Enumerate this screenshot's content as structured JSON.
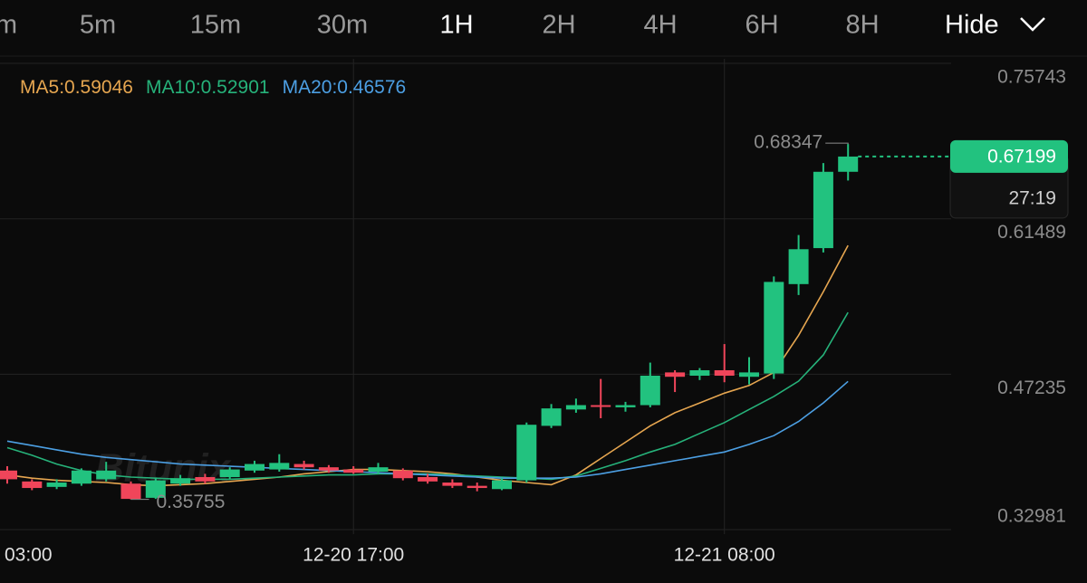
{
  "timeframes": [
    "m",
    "5m",
    "15m",
    "30m",
    "1H",
    "2H",
    "4H",
    "6H",
    "8H"
  ],
  "active_timeframe": "1H",
  "hide_button": "Hide",
  "watermark": "Bitunix",
  "countdown": "27:19",
  "chart_data": {
    "type": "candlestick",
    "categories": [
      "03:00",
      null,
      null,
      null,
      null,
      null,
      null,
      null,
      null,
      null,
      null,
      null,
      null,
      null,
      "12-20 17:00",
      null,
      null,
      null,
      null,
      null,
      null,
      null,
      null,
      null,
      null,
      null,
      null,
      null,
      null,
      "12-21 08:00",
      null,
      null,
      null,
      null,
      null
    ],
    "open": [
      0.384,
      0.374,
      0.369,
      0.372,
      0.376,
      0.372,
      0.359,
      0.372,
      0.378,
      0.378,
      0.384,
      0.385,
      0.39,
      0.387,
      0.385,
      0.383,
      0.384,
      0.378,
      0.373,
      0.37,
      0.367,
      0.375,
      0.425,
      0.44,
      0.444,
      0.442,
      0.444,
      0.474,
      0.471,
      0.476,
      0.47,
      0.473,
      0.555,
      0.588,
      0.658
    ],
    "high": [
      0.388,
      0.376,
      0.376,
      0.386,
      0.392,
      0.374,
      0.377,
      0.38,
      0.381,
      0.387,
      0.393,
      0.399,
      0.393,
      0.389,
      0.388,
      0.391,
      0.386,
      0.381,
      0.376,
      0.373,
      0.377,
      0.428,
      0.445,
      0.45,
      0.468,
      0.447,
      0.483,
      0.476,
      0.478,
      0.5,
      0.488,
      0.562,
      0.6,
      0.666,
      0.68347
    ],
    "low": [
      0.372,
      0.366,
      0.367,
      0.37,
      0.374,
      0.35755,
      0.358,
      0.37,
      0.372,
      0.376,
      0.382,
      0.383,
      0.385,
      0.382,
      0.381,
      0.381,
      0.375,
      0.372,
      0.368,
      0.365,
      0.366,
      0.373,
      0.423,
      0.437,
      0.432,
      0.438,
      0.442,
      0.456,
      0.467,
      0.465,
      0.463,
      0.468,
      0.545,
      0.584,
      0.65
    ],
    "close": [
      0.376,
      0.368,
      0.373,
      0.384,
      0.384,
      0.358,
      0.375,
      0.377,
      0.374,
      0.385,
      0.39,
      0.391,
      0.387,
      0.384,
      0.382,
      0.387,
      0.377,
      0.374,
      0.37,
      0.368,
      0.375,
      0.426,
      0.441,
      0.444,
      0.443,
      0.444,
      0.471,
      0.47,
      0.476,
      0.471,
      0.474,
      0.557,
      0.587,
      0.658,
      0.67199
    ],
    "up_color": "#22c27f",
    "down_color": "#f0455a",
    "series": [
      {
        "name": "MA5",
        "color": "#e6a650",
        "values": [
          0.38,
          0.377,
          0.375,
          0.374,
          0.373,
          0.371,
          0.37,
          0.371,
          0.372,
          0.374,
          0.376,
          0.378,
          0.381,
          0.383,
          0.385,
          0.385,
          0.384,
          0.383,
          0.381,
          0.378,
          0.375,
          0.373,
          0.371,
          0.38,
          0.395,
          0.41,
          0.425,
          0.437,
          0.446,
          0.455,
          0.462,
          0.474,
          0.508,
          0.548,
          0.59046
        ]
      },
      {
        "name": "MA10",
        "color": "#26b27a",
        "values": [
          0.405,
          0.398,
          0.39,
          0.384,
          0.38,
          0.378,
          0.377,
          0.376,
          0.376,
          0.376,
          0.377,
          0.378,
          0.379,
          0.38,
          0.38,
          0.381,
          0.381,
          0.381,
          0.38,
          0.379,
          0.378,
          0.377,
          0.376,
          0.379,
          0.386,
          0.393,
          0.401,
          0.408,
          0.418,
          0.428,
          0.44,
          0.452,
          0.466,
          0.49,
          0.52901
        ]
      },
      {
        "name": "MA20",
        "color": "#4c9fe3",
        "values": [
          0.411,
          0.407,
          0.403,
          0.399,
          0.396,
          0.394,
          0.392,
          0.39,
          0.389,
          0.388,
          0.387,
          0.386,
          0.385,
          0.384,
          0.383,
          0.382,
          0.381,
          0.38,
          0.379,
          0.378,
          0.377,
          0.377,
          0.377,
          0.378,
          0.381,
          0.385,
          0.389,
          0.393,
          0.397,
          0.401,
          0.408,
          0.416,
          0.429,
          0.446,
          0.46576
        ]
      }
    ],
    "ylim": [
      0.3257,
      0.7616
    ],
    "yticks": [
      0.75743,
      0.61489,
      0.47235,
      0.32981
    ],
    "grid": true
  }
}
